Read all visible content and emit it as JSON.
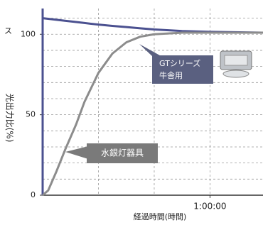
{
  "chart_data": {
    "type": "line",
    "y_label": "光出力比(%)",
    "x_label": "経過時間(時間)",
    "edge_text": "ス",
    "x": [
      0,
      2,
      5,
      8,
      12,
      15,
      20,
      25,
      30,
      35,
      40,
      50,
      60,
      79
    ],
    "series": [
      {
        "name": "GTシリーズ 牛舎用",
        "color": "#4b5190",
        "values": [
          110,
          109.6,
          109,
          108.4,
          107.6,
          107,
          106,
          105.2,
          104.5,
          103.7,
          103,
          102,
          101.5,
          101
        ]
      },
      {
        "name": "水銀灯器具",
        "color": "#8c8c8c",
        "values": [
          0,
          3,
          15,
          28,
          44,
          58,
          76,
          88,
          95,
          98.5,
          100,
          101,
          101,
          101
        ]
      }
    ],
    "xlim": [
      0,
      79
    ],
    "ylim": [
      0,
      116
    ],
    "xticks": [
      {
        "value": 60,
        "label": "1:00:00"
      }
    ],
    "yticks": [
      0,
      50,
      100
    ],
    "x_grid": [
      20,
      40,
      60
    ],
    "y_grid": [
      10,
      20,
      30,
      40,
      50,
      60,
      70,
      80,
      90,
      100,
      110
    ],
    "grid": true
  }
}
